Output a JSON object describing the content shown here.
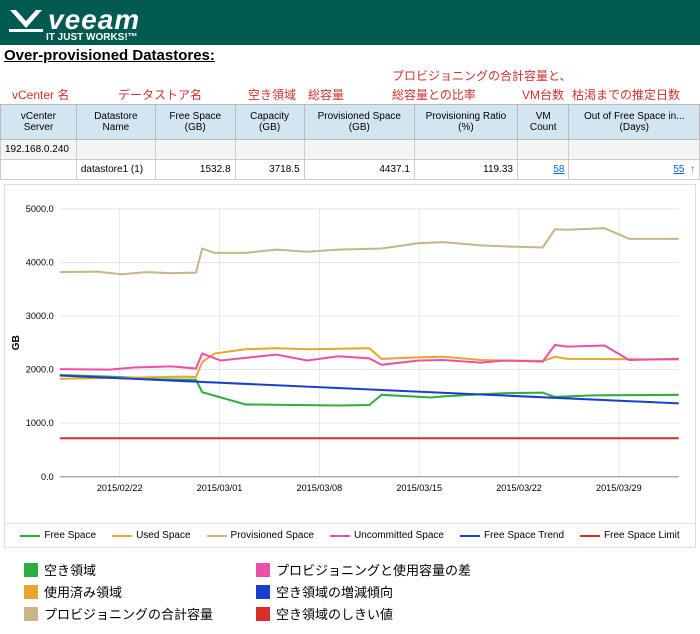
{
  "brand": {
    "name": "veeam",
    "tagline": "IT JUST WORKS!™"
  },
  "title": "Over-provisioned Datastores:",
  "annotations": {
    "row1": {
      "a": "プロビジョニングの合計容量と、"
    },
    "row2": {
      "a": "vCenter 名",
      "b": "データストア名",
      "c": "空き領域",
      "d": "総容量",
      "e": "総容量との比率",
      "f": "VM台数",
      "g": "枯渇までの推定日数"
    }
  },
  "table": {
    "headers": [
      "vCenter Server",
      "Datastore Name",
      "Free Space (GB)",
      "Capacity (GB)",
      "Provisioned Space (GB)",
      "Provisioning Ratio (%)",
      "VM Count",
      "Out of Free Space in... (Days)"
    ],
    "ip_row": "192.168.0.240",
    "data_row": {
      "ds": "datastore1 (1)",
      "free": "1532.8",
      "cap": "3718.5",
      "prov": "4437.1",
      "ratio": "119.33",
      "vms": "58",
      "days": "55"
    }
  },
  "chart": {
    "ylabel": "GB",
    "ylim": [
      0,
      5000
    ],
    "ytick_step": 1000,
    "yticks": [
      "0.0",
      "1000.0",
      "2000.0",
      "3000.0",
      "4000.0",
      "5000.0"
    ],
    "xticks": [
      "2015/02/22",
      "2015/03/01",
      "2015/03/08",
      "2015/03/15",
      "2015/03/22",
      "2015/03/29"
    ],
    "series": {
      "free_space": {
        "color": "#2eae3f",
        "points": [
          [
            0,
            1900
          ],
          [
            8,
            1870
          ],
          [
            12,
            1850
          ],
          [
            16,
            1820
          ],
          [
            22,
            1810
          ],
          [
            23,
            1580
          ],
          [
            30,
            1350
          ],
          [
            38,
            1340
          ],
          [
            45,
            1330
          ],
          [
            50,
            1340
          ],
          [
            52,
            1530
          ],
          [
            60,
            1480
          ],
          [
            62,
            1500
          ],
          [
            68,
            1540
          ],
          [
            72,
            1560
          ],
          [
            78,
            1570
          ],
          [
            80,
            1490
          ],
          [
            86,
            1520
          ],
          [
            100,
            1530
          ]
        ]
      },
      "used_space": {
        "color": "#e8a631",
        "points": [
          [
            0,
            1830
          ],
          [
            12,
            1850
          ],
          [
            20,
            1870
          ],
          [
            22,
            1860
          ],
          [
            23,
            2140
          ],
          [
            25,
            2300
          ],
          [
            30,
            2380
          ],
          [
            35,
            2400
          ],
          [
            40,
            2380
          ],
          [
            45,
            2390
          ],
          [
            50,
            2400
          ],
          [
            52,
            2200
          ],
          [
            58,
            2230
          ],
          [
            62,
            2240
          ],
          [
            66,
            2200
          ],
          [
            68,
            2180
          ],
          [
            72,
            2170
          ],
          [
            78,
            2160
          ],
          [
            80,
            2240
          ],
          [
            82,
            2200
          ],
          [
            100,
            2190
          ]
        ]
      },
      "provisioned": {
        "color": "#c9b585",
        "points": [
          [
            0,
            3820
          ],
          [
            6,
            3830
          ],
          [
            10,
            3780
          ],
          [
            14,
            3820
          ],
          [
            18,
            3800
          ],
          [
            22,
            3810
          ],
          [
            23,
            4260
          ],
          [
            25,
            4180
          ],
          [
            30,
            4180
          ],
          [
            35,
            4240
          ],
          [
            40,
            4200
          ],
          [
            45,
            4240
          ],
          [
            52,
            4260
          ],
          [
            58,
            4360
          ],
          [
            62,
            4380
          ],
          [
            68,
            4320
          ],
          [
            72,
            4300
          ],
          [
            78,
            4280
          ],
          [
            80,
            4620
          ],
          [
            82,
            4610
          ],
          [
            88,
            4640
          ],
          [
            92,
            4440
          ],
          [
            100,
            4440
          ]
        ]
      },
      "uncommitted": {
        "color": "#ec4fa9",
        "points": [
          [
            0,
            2010
          ],
          [
            8,
            2000
          ],
          [
            12,
            2040
          ],
          [
            18,
            2060
          ],
          [
            22,
            2020
          ],
          [
            23,
            2300
          ],
          [
            26,
            2170
          ],
          [
            30,
            2220
          ],
          [
            35,
            2280
          ],
          [
            40,
            2170
          ],
          [
            45,
            2250
          ],
          [
            50,
            2210
          ],
          [
            52,
            2090
          ],
          [
            58,
            2170
          ],
          [
            62,
            2180
          ],
          [
            68,
            2130
          ],
          [
            72,
            2170
          ],
          [
            78,
            2150
          ],
          [
            80,
            2460
          ],
          [
            82,
            2430
          ],
          [
            88,
            2450
          ],
          [
            92,
            2180
          ],
          [
            100,
            2200
          ]
        ]
      },
      "trend": {
        "color": "#1a3fcf",
        "points": [
          [
            0,
            1890
          ],
          [
            100,
            1370
          ]
        ]
      },
      "limit": {
        "color": "#dc2d2d",
        "points": [
          [
            0,
            720
          ],
          [
            100,
            720
          ]
        ]
      }
    },
    "legend": [
      {
        "label": "Free Space",
        "color": "#2eae3f"
      },
      {
        "label": "Used Space",
        "color": "#e8a631"
      },
      {
        "label": "Provisioned Space",
        "color": "#c9b585"
      },
      {
        "label": "Uncommitted Space",
        "color": "#ec4fa9"
      },
      {
        "label": "Free Space Trend",
        "color": "#1a3fcf"
      },
      {
        "label": "Free Space Limit",
        "color": "#dc2d2d"
      }
    ]
  },
  "jp_legend": [
    [
      {
        "label": "空き領域",
        "color": "#2eae3f"
      },
      {
        "label": "プロビジョニングと使用容量の差",
        "color": "#ec4fa9"
      }
    ],
    [
      {
        "label": "使用済み領域",
        "color": "#e8a631"
      },
      {
        "label": "空き領域の増減傾向",
        "color": "#1a3fcf"
      }
    ],
    [
      {
        "label": "プロビジョニングの合計容量",
        "color": "#c9b585"
      },
      {
        "label": "空き領域のしきい値",
        "color": "#dc2d2d"
      }
    ]
  ]
}
